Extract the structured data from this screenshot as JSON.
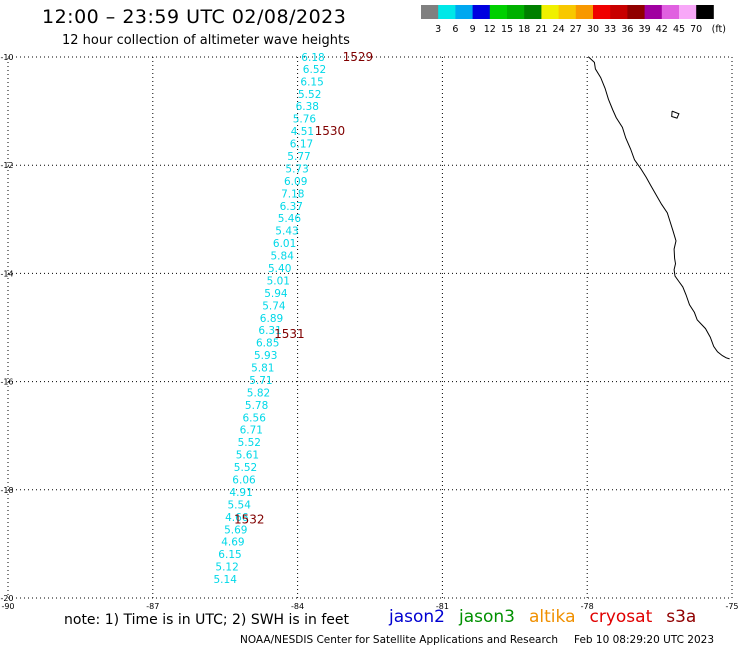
{
  "title": "12:00 – 23:59 UTC 02/08/2023",
  "subtitle": "12 hour collection of altimeter wave heights",
  "colorbar": {
    "labels": [
      "3",
      "6",
      "9",
      "12",
      "15",
      "18",
      "21",
      "24",
      "27",
      "30",
      "33",
      "36",
      "39",
      "42",
      "45",
      "70"
    ],
    "unit": "(ft)",
    "colors": [
      "#808080",
      "#00e8e8",
      "#00a8f0",
      "#0000e0",
      "#00d000",
      "#00b000",
      "#008000",
      "#f0f000",
      "#f8c800",
      "#f89800",
      "#f00000",
      "#c80000",
      "#900000",
      "#a000a0",
      "#e060e0",
      "#f8a8f8",
      "#000000"
    ]
  },
  "axes": {
    "lon_labels": [
      "-90",
      "-87",
      "-84",
      "-81",
      "-78",
      "-75"
    ],
    "lat_labels": [
      "-10",
      "-12",
      "-14",
      "-16",
      "-18",
      "-20"
    ],
    "lon_range": [
      -90,
      -75
    ],
    "lat_range": [
      -10,
      -20
    ]
  },
  "wave_color": "#00d8e8",
  "time_color": "#800000",
  "track": [
    {
      "lon": -83.68,
      "lat": -10.0,
      "val": "6.18"
    },
    {
      "lon": -83.65,
      "lat": -10.22,
      "val": "6.52"
    },
    {
      "lon": -83.7,
      "lat": -10.45,
      "val": "6.15"
    },
    {
      "lon": -83.75,
      "lat": -10.68,
      "val": "5.52"
    },
    {
      "lon": -83.8,
      "lat": -10.91,
      "val": "6.38"
    },
    {
      "lon": -83.86,
      "lat": -11.14,
      "val": "5.76"
    },
    {
      "lon": -83.9,
      "lat": -11.37,
      "val": "4.51"
    },
    {
      "lon": -83.92,
      "lat": -11.6,
      "val": "6.17"
    },
    {
      "lon": -83.97,
      "lat": -11.83,
      "val": "5.77"
    },
    {
      "lon": -84.01,
      "lat": -12.06,
      "val": "5.73"
    },
    {
      "lon": -84.04,
      "lat": -12.29,
      "val": "6.09"
    },
    {
      "lon": -84.1,
      "lat": -12.52,
      "val": "7.18"
    },
    {
      "lon": -84.13,
      "lat": -12.75,
      "val": "6.37"
    },
    {
      "lon": -84.17,
      "lat": -12.98,
      "val": "5.46"
    },
    {
      "lon": -84.22,
      "lat": -13.21,
      "val": "5.43"
    },
    {
      "lon": -84.27,
      "lat": -13.44,
      "val": "6.01"
    },
    {
      "lon": -84.32,
      "lat": -13.67,
      "val": "5.84"
    },
    {
      "lon": -84.37,
      "lat": -13.9,
      "val": "5.40"
    },
    {
      "lon": -84.4,
      "lat": -14.13,
      "val": "5.01"
    },
    {
      "lon": -84.45,
      "lat": -14.36,
      "val": "5.94"
    },
    {
      "lon": -84.49,
      "lat": -14.59,
      "val": "5.74"
    },
    {
      "lon": -84.54,
      "lat": -14.82,
      "val": "6.89"
    },
    {
      "lon": -84.57,
      "lat": -15.05,
      "val": "6.31"
    },
    {
      "lon": -84.62,
      "lat": -15.28,
      "val": "6.85"
    },
    {
      "lon": -84.66,
      "lat": -15.51,
      "val": "5.93"
    },
    {
      "lon": -84.72,
      "lat": -15.74,
      "val": "5.81"
    },
    {
      "lon": -84.76,
      "lat": -15.97,
      "val": "5.71"
    },
    {
      "lon": -84.81,
      "lat": -16.2,
      "val": "5.82"
    },
    {
      "lon": -84.85,
      "lat": -16.43,
      "val": "5.78"
    },
    {
      "lon": -84.9,
      "lat": -16.66,
      "val": "6.56"
    },
    {
      "lon": -84.96,
      "lat": -16.89,
      "val": "6.71"
    },
    {
      "lon": -85.0,
      "lat": -17.12,
      "val": "5.52"
    },
    {
      "lon": -85.04,
      "lat": -17.35,
      "val": "5.61"
    },
    {
      "lon": -85.08,
      "lat": -17.58,
      "val": "5.52"
    },
    {
      "lon": -85.11,
      "lat": -17.81,
      "val": "6.06"
    },
    {
      "lon": -85.17,
      "lat": -18.04,
      "val": "4.91"
    },
    {
      "lon": -85.21,
      "lat": -18.27,
      "val": "5.54"
    },
    {
      "lon": -85.26,
      "lat": -18.5,
      "val": "4.66"
    },
    {
      "lon": -85.28,
      "lat": -18.73,
      "val": "5.69"
    },
    {
      "lon": -85.34,
      "lat": -18.96,
      "val": "4.69"
    },
    {
      "lon": -85.4,
      "lat": -19.19,
      "val": "6.15"
    },
    {
      "lon": -85.46,
      "lat": -19.42,
      "val": "5.12"
    },
    {
      "lon": -85.5,
      "lat": -19.65,
      "val": "5.14"
    }
  ],
  "time_labels": [
    {
      "lon": -82.75,
      "lat": -10.0,
      "text": "1529"
    },
    {
      "lon": -83.33,
      "lat": -11.37,
      "text": "1530"
    },
    {
      "lon": -84.17,
      "lat": -15.12,
      "text": "1531"
    },
    {
      "lon": -85.0,
      "lat": -18.55,
      "text": "1532"
    }
  ],
  "coastline": [
    [
      -77.97,
      -10.0
    ],
    [
      -77.85,
      -10.1
    ],
    [
      -77.83,
      -10.22
    ],
    [
      -77.72,
      -10.38
    ],
    [
      -77.63,
      -10.58
    ],
    [
      -77.56,
      -10.78
    ],
    [
      -77.47,
      -10.98
    ],
    [
      -77.4,
      -11.12
    ],
    [
      -77.27,
      -11.3
    ],
    [
      -77.2,
      -11.5
    ],
    [
      -77.1,
      -11.7
    ],
    [
      -77.02,
      -11.9
    ],
    [
      -76.9,
      -12.05
    ],
    [
      -76.78,
      -12.22
    ],
    [
      -76.68,
      -12.38
    ],
    [
      -76.57,
      -12.55
    ],
    [
      -76.46,
      -12.72
    ],
    [
      -76.34,
      -12.88
    ],
    [
      -76.28,
      -13.05
    ],
    [
      -76.22,
      -13.22
    ],
    [
      -76.16,
      -13.4
    ],
    [
      -76.2,
      -13.55
    ],
    [
      -76.19,
      -13.72
    ],
    [
      -76.17,
      -13.82
    ],
    [
      -76.2,
      -13.93
    ],
    [
      -76.18,
      -14.05
    ],
    [
      -76.1,
      -14.15
    ],
    [
      -76.02,
      -14.25
    ],
    [
      -75.95,
      -14.4
    ],
    [
      -75.88,
      -14.58
    ],
    [
      -75.78,
      -14.72
    ],
    [
      -75.72,
      -14.86
    ],
    [
      -75.55,
      -15.02
    ],
    [
      -75.45,
      -15.18
    ],
    [
      -75.38,
      -15.35
    ],
    [
      -75.3,
      -15.45
    ],
    [
      -75.2,
      -15.52
    ],
    [
      -75.12,
      -15.56
    ],
    [
      -75.05,
      -15.58
    ]
  ],
  "island": [
    [
      -76.24,
      -11.0
    ],
    [
      -76.1,
      -11.05
    ],
    [
      -76.14,
      -11.13
    ],
    [
      -76.25,
      -11.1
    ],
    [
      -76.24,
      -11.0
    ]
  ],
  "note": "note:  1) Time is in UTC;  2) SWH is in feet",
  "satellites": [
    {
      "name": "jason2",
      "color": "#0000d0"
    },
    {
      "name": "jason3",
      "color": "#009000"
    },
    {
      "name": "altika",
      "color": "#f09000"
    },
    {
      "name": "cryosat",
      "color": "#e00000"
    },
    {
      "name": "s3a",
      "color": "#900000"
    }
  ],
  "credit": "NOAA/NESDIS Center for Satellite Applications and Research",
  "timestamp": "Feb 10 08:29:20 UTC 2023"
}
